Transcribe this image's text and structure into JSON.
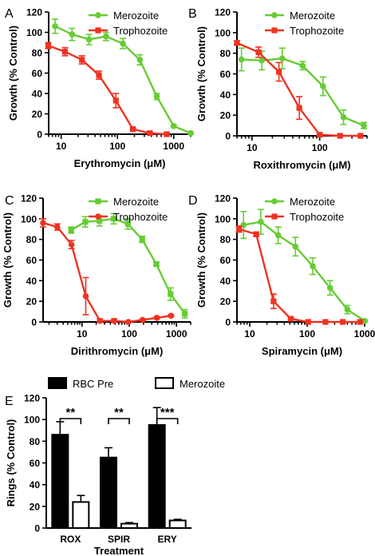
{
  "colors": {
    "merozoite": "#66cc33",
    "trophozoite": "#ee3322",
    "rbc_pre": "#000000",
    "axis": "#000000"
  },
  "chart_data": [
    {
      "panel": "A",
      "type": "line",
      "xscale": "log",
      "xlabel": "Erythromycin (μM)",
      "ylabel": "Growth (% Control)",
      "xlim": [
        6,
        2000
      ],
      "ylim": [
        0,
        120
      ],
      "xticks": [
        10,
        100,
        1000
      ],
      "xtick_labels": [
        "10",
        "100",
        "1000"
      ],
      "yticks": [
        0,
        20,
        40,
        60,
        80,
        100,
        120
      ],
      "ytick_labels": [
        "0",
        "20",
        "40",
        "60",
        "80",
        "100",
        "120"
      ],
      "legend_position": "top-right",
      "series": [
        {
          "name": "Merozoite",
          "marker": "circle",
          "color": "#66cc33",
          "x": [
            7.8,
            15.6,
            31.3,
            62.5,
            125,
            250,
            500,
            1000,
            2000
          ],
          "y": [
            106,
            98,
            93,
            96,
            89,
            73,
            37,
            8,
            1
          ],
          "err": [
            7,
            6,
            5,
            4,
            5,
            5,
            3,
            1,
            1
          ]
        },
        {
          "name": "Trophozoite",
          "marker": "square",
          "color": "#ee3322",
          "x": [
            5.9,
            11.7,
            23.4,
            46.9,
            93.8,
            188,
            375,
            750
          ],
          "y": [
            87,
            81,
            73,
            58,
            33,
            5,
            1,
            0
          ],
          "err": [
            3,
            4,
            4,
            4,
            7,
            1,
            1,
            0
          ]
        }
      ]
    },
    {
      "panel": "B",
      "type": "line",
      "xscale": "log",
      "xlabel": "Roxithromycin (μM)",
      "ylabel": "Growth (% Control)",
      "xlim": [
        6,
        500
      ],
      "ylim": [
        0,
        120
      ],
      "xticks": [
        10,
        100
      ],
      "xtick_labels": [
        "10",
        "100"
      ],
      "yticks": [
        0,
        20,
        40,
        60,
        80,
        100,
        120
      ],
      "ytick_labels": [
        "0",
        "20",
        "40",
        "60",
        "80",
        "100",
        "120"
      ],
      "legend_position": "top-right",
      "series": [
        {
          "name": "Merozoite",
          "marker": "circle",
          "color": "#66cc33",
          "x": [
            7,
            14,
            28,
            56,
            112,
            225,
            450
          ],
          "y": [
            74,
            73,
            75,
            68,
            48,
            18,
            10
          ],
          "err": [
            11,
            9,
            10,
            4,
            9,
            7,
            3
          ]
        },
        {
          "name": "Trophozoite",
          "marker": "square",
          "color": "#ee3322",
          "x": [
            6,
            12.5,
            25,
            50,
            100,
            200,
            400
          ],
          "y": [
            90,
            81,
            62,
            27,
            1,
            0,
            0
          ],
          "err": [
            2,
            5,
            9,
            11,
            1,
            0,
            0
          ]
        }
      ]
    },
    {
      "panel": "C",
      "type": "line",
      "xscale": "log",
      "xlabel": "Dirithromycin (μM)",
      "ylabel": "Growth (% Control)",
      "xlim": [
        1.5,
        2000
      ],
      "ylim": [
        0,
        120
      ],
      "xticks": [
        10,
        100,
        1000
      ],
      "xtick_labels": [
        "10",
        "100",
        "1000"
      ],
      "yticks": [
        0,
        20,
        40,
        60,
        80,
        100,
        120
      ],
      "ytick_labels": [
        "0",
        "20",
        "40",
        "60",
        "80",
        "100",
        "120"
      ],
      "legend_position": "top-right",
      "series": [
        {
          "name": "Merozoite",
          "marker": "square",
          "color": "#66cc33",
          "x": [
            5.9,
            11.7,
            23.4,
            46.9,
            93.8,
            188,
            375,
            750,
            1500
          ],
          "y": [
            89,
            97,
            98,
            100,
            95,
            80,
            56,
            27,
            8
          ],
          "err": [
            3,
            5,
            5,
            5,
            5,
            3,
            2,
            6,
            4
          ]
        },
        {
          "name": "Trophozoite",
          "marker": "circle",
          "color": "#ee3322",
          "x": [
            1.5,
            3,
            6,
            12,
            24,
            48,
            96,
            192,
            384,
            768
          ],
          "y": [
            96,
            92,
            75,
            25,
            1,
            1,
            0,
            2,
            4,
            6
          ],
          "err": [
            4,
            3,
            4,
            18,
            2,
            2,
            1,
            1,
            1,
            1
          ]
        }
      ]
    },
    {
      "panel": "D",
      "type": "line",
      "xscale": "log",
      "xlabel": "Spiramycin (μM)",
      "ylabel": "Growth (% Control)",
      "xlim": [
        6,
        1100
      ],
      "ylim": [
        0,
        120
      ],
      "xticks": [
        10,
        100,
        1000
      ],
      "xtick_labels": [
        "10",
        "100",
        "1000"
      ],
      "yticks": [
        0,
        20,
        40,
        60,
        80,
        100,
        120
      ],
      "ytick_labels": [
        "0",
        "20",
        "40",
        "60",
        "80",
        "100",
        "120"
      ],
      "legend_position": "top-right",
      "series": [
        {
          "name": "Merozoite",
          "marker": "circle",
          "color": "#66cc33",
          "x": [
            7.8,
            15.6,
            31.3,
            62.5,
            125,
            250,
            500,
            1000
          ],
          "y": [
            94,
            97,
            84,
            73,
            54,
            33,
            12,
            1
          ],
          "err": [
            13,
            12,
            8,
            9,
            8,
            7,
            4,
            1
          ]
        },
        {
          "name": "Trophozoite",
          "marker": "square",
          "color": "#ee3322",
          "x": [
            6.5,
            13,
            26,
            52,
            104,
            208,
            416,
            832
          ],
          "y": [
            90,
            85,
            20,
            3,
            0,
            0,
            0,
            0
          ],
          "err": [
            3,
            2,
            7,
            1,
            0,
            0,
            0,
            0
          ]
        }
      ]
    },
    {
      "panel": "E",
      "type": "bar",
      "xlabel": "Treatment",
      "ylabel": "Rings (% Control)",
      "ylim": [
        0,
        120
      ],
      "yticks": [
        0,
        20,
        40,
        60,
        80,
        100,
        120
      ],
      "ytick_labels": [
        "0",
        "20",
        "40",
        "60",
        "80",
        "100",
        "120"
      ],
      "categories": [
        "ROX",
        "SPIR",
        "ERY"
      ],
      "legend_position": "top",
      "series": [
        {
          "name": "RBC Pre",
          "color": "#000000",
          "fill": "solid",
          "values": [
            86,
            65,
            95
          ],
          "err": [
            12,
            9,
            16
          ]
        },
        {
          "name": "Merozoite",
          "color": "#000000",
          "fill": "open",
          "values": [
            24,
            4,
            7
          ],
          "err": [
            6,
            1,
            1
          ]
        }
      ],
      "significance": [
        "**",
        "**",
        "***"
      ]
    }
  ]
}
